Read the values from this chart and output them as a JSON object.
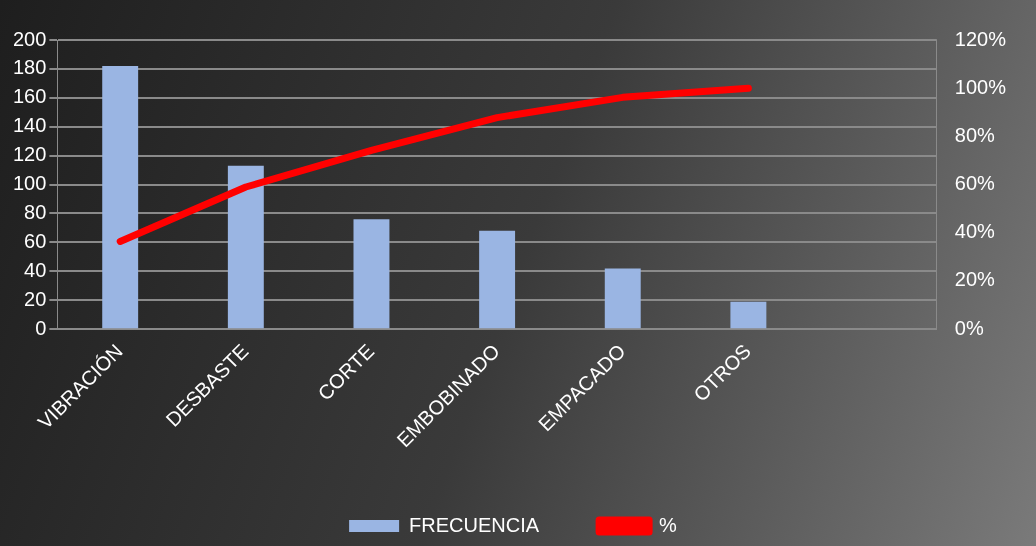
{
  "chart_data": {
    "type": "bar",
    "categories": [
      "VIBRACIÓN",
      "DESBASTE",
      "CORTE",
      "EMBOBINADO",
      "EMPACADO",
      "OTROS",
      null
    ],
    "series": [
      {
        "name": "FRECUENCIA",
        "color": "#9ab5e3",
        "values": [
          182,
          113,
          76,
          68,
          42,
          19,
          null
        ]
      },
      {
        "name": "%",
        "type": "line",
        "axis": "y2",
        "color": "#ff0000",
        "values": [
          36.4,
          59,
          74.2,
          87.8,
          96.2,
          100,
          null
        ]
      }
    ],
    "ylim": [
      0,
      200
    ],
    "yticks": [
      0,
      20,
      40,
      60,
      80,
      100,
      120,
      140,
      160,
      180,
      200
    ],
    "y2lim": [
      0,
      120
    ],
    "y2ticks": [
      {
        "value": 0,
        "label": "0%"
      },
      {
        "value": 20,
        "label": "20%"
      },
      {
        "value": 40,
        "label": "40%"
      },
      {
        "value": 60,
        "label": "60%"
      },
      {
        "value": 80,
        "label": "80%"
      },
      {
        "value": 100,
        "label": "100%"
      },
      {
        "value": 120,
        "label": "120%"
      }
    ],
    "grid": "y",
    "legend": "bottom",
    "marker": "none",
    "line_style": "solid"
  }
}
